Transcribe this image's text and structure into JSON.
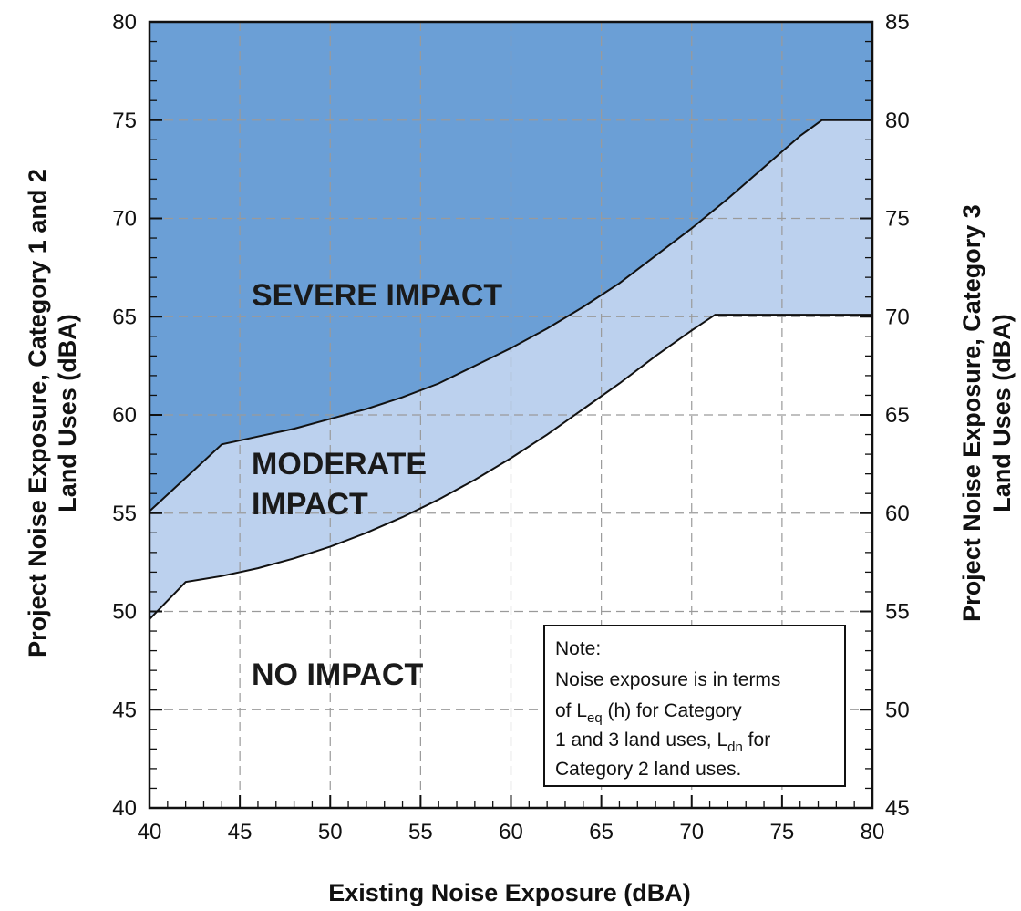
{
  "chart_data": {
    "type": "area",
    "x_axis": {
      "label": "Existing Noise Exposure (dBA)",
      "range": [
        40,
        80
      ],
      "ticks": [
        40,
        45,
        50,
        55,
        60,
        65,
        70,
        75,
        80
      ]
    },
    "y_axis_left": {
      "label_line1": "Project Noise Exposure, Category 1 and 2",
      "label_line2": "Land Uses (dBA)",
      "range": [
        40,
        80
      ],
      "ticks": [
        40,
        45,
        50,
        55,
        60,
        65,
        70,
        75,
        80
      ]
    },
    "y_axis_right": {
      "label_line1": "Project Noise Exposure, Category 3",
      "label_line2": "Land Uses (dBA)",
      "range": [
        45,
        85
      ],
      "ticks": [
        45,
        50,
        55,
        60,
        65,
        70,
        75,
        80,
        85
      ]
    },
    "grid": true,
    "regions": [
      {
        "name": "SEVERE IMPACT",
        "color": "#6b9fd6"
      },
      {
        "name": "MODERATE IMPACT",
        "line1": "MODERATE",
        "line2": "IMPACT",
        "color": "#bcd1ee"
      },
      {
        "name": "NO IMPACT",
        "color": "#ffffff"
      }
    ],
    "series": [
      {
        "role": "severe_threshold",
        "x": [
          40,
          42,
          44,
          46,
          48,
          50,
          52,
          54,
          56,
          58,
          60,
          62,
          64,
          66,
          68,
          70,
          72,
          74,
          76,
          77.2,
          80
        ],
        "y": [
          55.1,
          56.8,
          58.5,
          58.9,
          59.3,
          59.8,
          60.3,
          60.9,
          61.6,
          62.5,
          63.4,
          64.4,
          65.5,
          66.7,
          68.1,
          69.5,
          71.0,
          72.6,
          74.2,
          75.0,
          75.0
        ]
      },
      {
        "role": "moderate_threshold",
        "x": [
          40,
          42,
          44,
          46,
          48,
          50,
          52,
          54,
          56,
          58,
          60,
          62,
          64,
          66,
          68,
          70,
          71.3,
          80
        ],
        "y": [
          49.6,
          51.5,
          51.8,
          52.2,
          52.7,
          53.3,
          54.0,
          54.8,
          55.7,
          56.7,
          57.8,
          59.0,
          60.3,
          61.6,
          63.0,
          64.3,
          65.1,
          65.1
        ]
      }
    ],
    "annotations": {
      "severe": "SEVERE IMPACT",
      "moderate_line1": "MODERATE",
      "moderate_line2": "IMPACT",
      "none": "NO IMPACT"
    },
    "note": {
      "title": "Note:",
      "line1": "Noise exposure is in terms",
      "line2_pre": "of L",
      "line2_sub": "eq",
      "line2_post": " (h) for Category",
      "line3_pre": "1 and 3 land uses, L",
      "line3_sub": "dn",
      "line3_post": " for",
      "line4": "Category 2 land uses."
    },
    "colors": {
      "severe": "#6b9fd6",
      "moderate": "#bcd1ee",
      "none": "#ffffff",
      "grid": "#9a9a9a",
      "line": "#111111"
    }
  }
}
